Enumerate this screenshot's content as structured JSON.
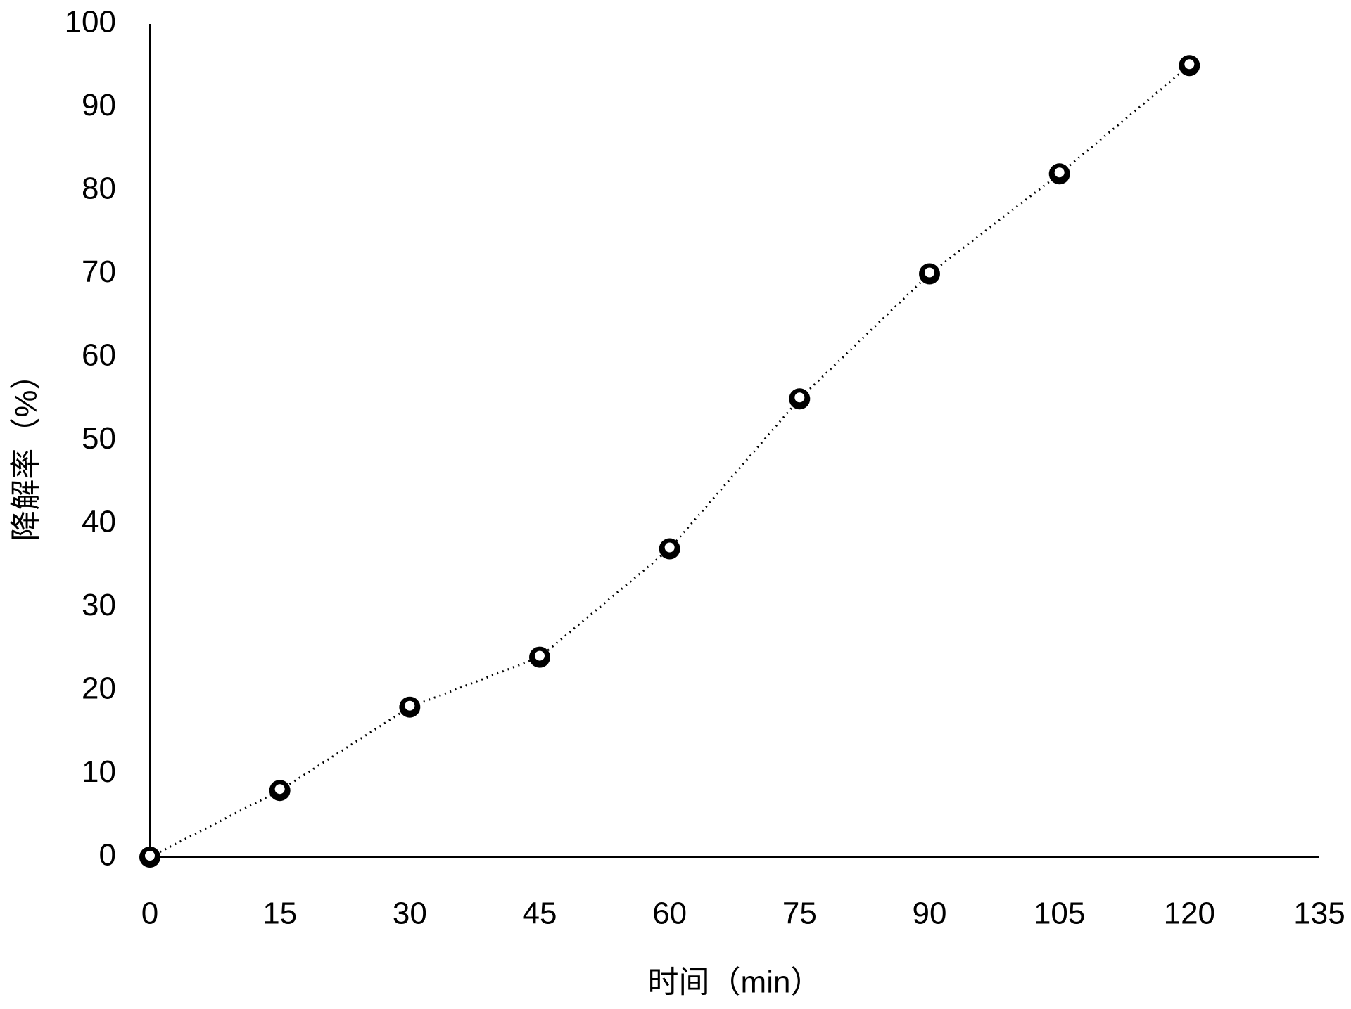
{
  "chart_data": {
    "type": "line",
    "x_label": "时间（min）",
    "y_label": "降解率（%）",
    "x": [
      0,
      15,
      30,
      45,
      60,
      75,
      90,
      105,
      120
    ],
    "series": [
      {
        "color": "#000000",
        "values": [
          0,
          8,
          18,
          24,
          37,
          55,
          70,
          82,
          95
        ]
      }
    ],
    "xlim": [
      0,
      135
    ],
    "xticks": [
      0,
      15,
      30,
      45,
      60,
      75,
      90,
      105,
      120,
      135
    ],
    "ylim": [
      0,
      100
    ],
    "yticks": [
      0,
      10,
      20,
      30,
      40,
      50,
      60,
      70,
      80,
      90,
      100
    ],
    "grid": false
  }
}
